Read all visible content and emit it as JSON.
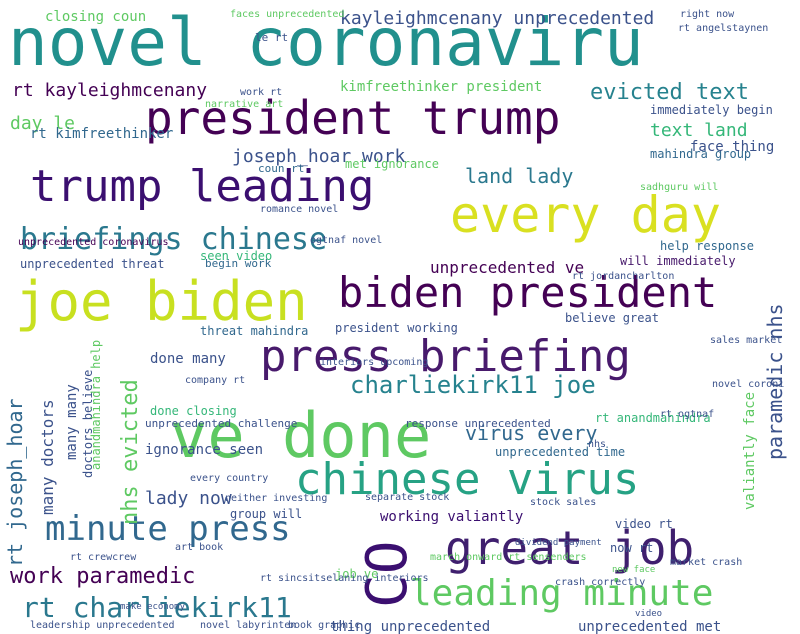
{
  "palette": {
    "teal": "#21908d",
    "deep_purple": "#440154",
    "indigo": "#3b528b",
    "blue": "#31688e",
    "green": "#5ec962",
    "lime": "#b5de2b",
    "yellow": "#d9e021",
    "sea": "#35b779"
  },
  "words": [
    {
      "text": "novel coronaviru",
      "size": 66,
      "color": "#21908d"
    },
    {
      "text": "president trump",
      "size": 46,
      "color": "#440154"
    },
    {
      "text": "trump leading",
      "size": 44,
      "color": "#3b0f70"
    },
    {
      "text": "every day",
      "size": 50,
      "color": "#d9e021"
    },
    {
      "text": "joe biden",
      "size": 54,
      "color": "#c8e020"
    },
    {
      "text": "biden president",
      "size": 42,
      "color": "#440154"
    },
    {
      "text": "press briefing",
      "size": 44,
      "color": "#481a6c"
    },
    {
      "text": "ve done",
      "size": 62,
      "color": "#5ec962"
    },
    {
      "text": "chinese virus",
      "size": 44,
      "color": "#26a284"
    },
    {
      "text": "great job",
      "size": 46,
      "color": "#3f1f6e"
    },
    {
      "text": "CO",
      "size": 56,
      "color": "#3b0f70"
    },
    {
      "text": "leading minute",
      "size": 36,
      "color": "#5ec962"
    },
    {
      "text": "minute press",
      "size": 34,
      "color": "#31688e"
    },
    {
      "text": "briefings chinese",
      "size": 30,
      "color": "#2a788e"
    },
    {
      "text": "rt charliekirk11",
      "size": 28,
      "color": "#2a788e"
    },
    {
      "text": "work paramedic",
      "size": 22,
      "color": "#440154"
    },
    {
      "text": "charliekirk11 joe",
      "size": 24,
      "color": "#26828e"
    },
    {
      "text": "virus every",
      "size": 20,
      "color": "#31688e"
    },
    {
      "text": "nhs evicted",
      "size": 22,
      "color": "#5ec962"
    },
    {
      "text": "rt joseph_hoar",
      "size": 20,
      "color": "#31688e"
    },
    {
      "text": "paramedic nhs",
      "size": 20,
      "color": "#3b528b"
    },
    {
      "text": "valiantly face",
      "size": 14,
      "color": "#5ec962"
    },
    {
      "text": "kayleighmcenany unprecedented",
      "size": 18,
      "color": "#3b528b"
    },
    {
      "text": "rt kayleighmcenany",
      "size": 18,
      "color": "#440154"
    },
    {
      "text": "evicted text",
      "size": 22,
      "color": "#26828e"
    },
    {
      "text": "text land",
      "size": 18,
      "color": "#35b779"
    },
    {
      "text": "day le",
      "size": 18,
      "color": "#5ec962"
    },
    {
      "text": "joseph_hoar work",
      "size": 18,
      "color": "#3b528b"
    },
    {
      "text": "land lady",
      "size": 20,
      "color": "#2a788e"
    },
    {
      "text": "face thing",
      "size": 14,
      "color": "#3b528b"
    },
    {
      "text": "kimfreethinker president",
      "size": 14,
      "color": "#5ec962"
    },
    {
      "text": "rt kimfreethinker",
      "size": 14,
      "color": "#31688e"
    },
    {
      "text": "mahindra group",
      "size": 12,
      "color": "#31688e"
    },
    {
      "text": "immediately begin",
      "size": 12,
      "color": "#3b528b"
    },
    {
      "text": "closing coun",
      "size": 14,
      "color": "#5ec962"
    },
    {
      "text": "unprecedented ve",
      "size": 16,
      "color": "#440154"
    },
    {
      "text": "will immediately",
      "size": 12,
      "color": "#481a6c"
    },
    {
      "text": "unprecedented threat",
      "size": 12,
      "color": "#3b528b"
    },
    {
      "text": "begin work",
      "size": 11,
      "color": "#31688e"
    },
    {
      "text": "help response",
      "size": 12,
      "color": "#31688e"
    },
    {
      "text": "threat mahindra",
      "size": 12,
      "color": "#31688e"
    },
    {
      "text": "president working",
      "size": 12,
      "color": "#3b528b"
    },
    {
      "text": "believe great",
      "size": 12,
      "color": "#3b528b"
    },
    {
      "text": "done many",
      "size": 14,
      "color": "#3b528b"
    },
    {
      "text": "done closing",
      "size": 12,
      "color": "#35b779"
    },
    {
      "text": "many doctors",
      "size": 16,
      "color": "#3b528b"
    },
    {
      "text": "many many",
      "size": 14,
      "color": "#3b528b"
    },
    {
      "text": "doctors believe",
      "size": 12,
      "color": "#3b528b"
    },
    {
      "text": "anandmahindra help",
      "size": 12,
      "color": "#5ec962"
    },
    {
      "text": "unprecedented challenge",
      "size": 11,
      "color": "#3b528b"
    },
    {
      "text": "response unprecedented",
      "size": 11,
      "color": "#3b528b"
    },
    {
      "text": "rt anandmahindra",
      "size": 12,
      "color": "#35b779"
    },
    {
      "text": "unprecedented time",
      "size": 12,
      "color": "#31688e"
    },
    {
      "text": "ignorance seen",
      "size": 14,
      "color": "#3b528b"
    },
    {
      "text": "lady now",
      "size": 18,
      "color": "#3b528b"
    },
    {
      "text": "group will",
      "size": 12,
      "color": "#3b528b"
    },
    {
      "text": "working valiantly",
      "size": 14,
      "color": "#3b0f70"
    },
    {
      "text": "video rt",
      "size": 12,
      "color": "#3b528b"
    },
    {
      "text": "now rt",
      "size": 12,
      "color": "#3b528b"
    },
    {
      "text": "job ve",
      "size": 12,
      "color": "#5ec962"
    },
    {
      "text": "thing unprecedented",
      "size": 14,
      "color": "#3b528b"
    },
    {
      "text": "unprecedented met",
      "size": 14,
      "color": "#3b528b"
    },
    {
      "text": "seen video",
      "size": 12,
      "color": "#35b779"
    },
    {
      "text": "met ignorance",
      "size": 12,
      "color": "#5ec962"
    },
    {
      "text": "unprecedented coronavirus",
      "size": 10,
      "color": "#440154"
    },
    {
      "text": "coun rt",
      "size": 11,
      "color": "#31688e"
    },
    {
      "text": "work rt",
      "size": 10,
      "color": "#3b528b"
    },
    {
      "text": "le rt",
      "size": 11,
      "color": "#3b528b"
    },
    {
      "text": "ogtnaf novel",
      "size": 10,
      "color": "#3b528b"
    },
    {
      "text": "rt jordancharlton",
      "size": 10,
      "color": "#3b528b"
    },
    {
      "text": "sadhguru will",
      "size": 10,
      "color": "#5ec962"
    },
    {
      "text": "company rt",
      "size": 10,
      "color": "#3b528b"
    },
    {
      "text": "interiors upcoming",
      "size": 10,
      "color": "#3b528b"
    },
    {
      "text": "rt ogtnaf",
      "size": 10,
      "color": "#3b528b"
    },
    {
      "text": "crash correctly",
      "size": 10,
      "color": "#3b528b"
    },
    {
      "text": "stock sales",
      "size": 10,
      "color": "#3b528b"
    },
    {
      "text": "separate stock",
      "size": 10,
      "color": "#3b528b"
    },
    {
      "text": "march onward rt sensenders",
      "size": 10,
      "color": "#5ec962"
    },
    {
      "text": "neither investing",
      "size": 10,
      "color": "#3b528b"
    },
    {
      "text": "every country",
      "size": 10,
      "color": "#3b528b"
    },
    {
      "text": "rt sincsitselaning interiors",
      "size": 10,
      "color": "#3b528b"
    },
    {
      "text": "art book",
      "size": 10,
      "color": "#3b528b"
    },
    {
      "text": "rt crewcrew",
      "size": 10,
      "color": "#3b528b"
    },
    {
      "text": "leadership unprecedented",
      "size": 10,
      "color": "#3b528b"
    },
    {
      "text": "novel labyrinten",
      "size": 10,
      "color": "#3b528b"
    },
    {
      "text": "book graphic",
      "size": 10,
      "color": "#3b528b"
    },
    {
      "text": "right now",
      "size": 10,
      "color": "#3b528b"
    },
    {
      "text": "rt angelstaynen",
      "size": 10,
      "color": "#3b528b"
    },
    {
      "text": "romance novel",
      "size": 10,
      "color": "#3b528b"
    },
    {
      "text": "narrative art",
      "size": 10,
      "color": "#5ec962"
    },
    {
      "text": "sales market",
      "size": 10,
      "color": "#3b528b"
    },
    {
      "text": "market crash",
      "size": 10,
      "color": "#3b528b"
    },
    {
      "text": "faces unprecedented",
      "size": 10,
      "color": "#5ec962"
    },
    {
      "text": "dividend payment",
      "size": 9,
      "color": "#3b528b"
    },
    {
      "text": "nhs",
      "size": 10,
      "color": "#3b528b"
    },
    {
      "text": "novel coroni",
      "size": 10,
      "color": "#3b528b"
    },
    {
      "text": "make economy",
      "size": 9,
      "color": "#3b528b"
    },
    {
      "text": "new face",
      "size": 9,
      "color": "#5ec962"
    },
    {
      "text": "video",
      "size": 9,
      "color": "#3b528b"
    }
  ]
}
